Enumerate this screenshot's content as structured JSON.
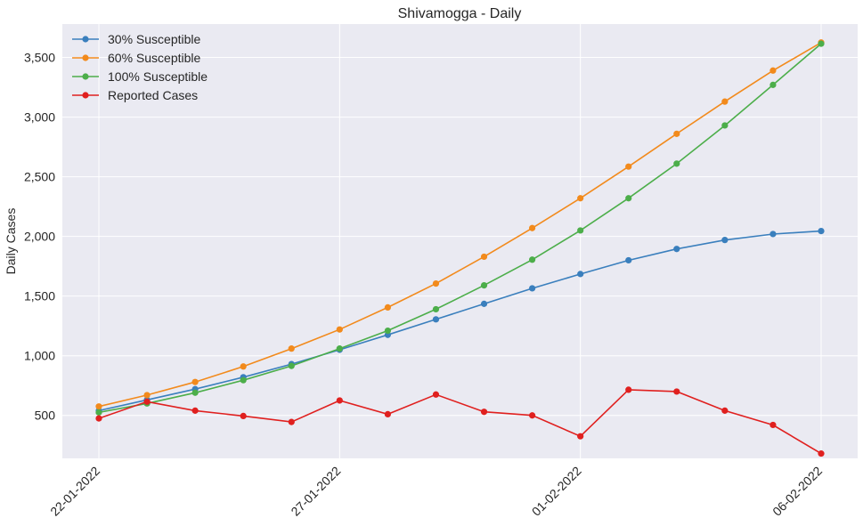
{
  "chart_data": {
    "type": "line",
    "title": "Shivamogga - Daily",
    "xlabel": "",
    "ylabel": "Daily Cases",
    "x": [
      "22-01-2022",
      "23-01-2022",
      "24-01-2022",
      "25-01-2022",
      "26-01-2022",
      "27-01-2022",
      "28-01-2022",
      "29-01-2022",
      "30-01-2022",
      "31-01-2022",
      "01-02-2022",
      "02-02-2022",
      "03-02-2022",
      "04-02-2022",
      "05-02-2022",
      "06-02-2022"
    ],
    "x_ticks": [
      "22-01-2022",
      "27-01-2022",
      "01-02-2022",
      "06-02-2022"
    ],
    "y_ticks": [
      500,
      1000,
      1500,
      2000,
      2500,
      3000,
      3500
    ],
    "y_tick_labels": [
      "500",
      "1,000",
      "1,500",
      "2,000",
      "2,500",
      "3,000",
      "3,500"
    ],
    "ylim": [
      140,
      3780
    ],
    "grid": true,
    "legend_position": "top-left",
    "series": [
      {
        "name": "30% Susceptible",
        "color": "#3a7fbd",
        "values": [
          540,
          630,
          720,
          820,
          930,
          1050,
          1175,
          1305,
          1435,
          1565,
          1685,
          1800,
          1895,
          1970,
          2020,
          2045
        ]
      },
      {
        "name": "60% Susceptible",
        "color": "#f28a1c",
        "values": [
          575,
          670,
          780,
          910,
          1060,
          1220,
          1405,
          1605,
          1830,
          2070,
          2320,
          2585,
          2860,
          3130,
          3390,
          3625
        ]
      },
      {
        "name": "100% Susceptible",
        "color": "#4cae4a",
        "values": [
          525,
          600,
          690,
          795,
          915,
          1060,
          1210,
          1390,
          1590,
          1805,
          2050,
          2320,
          2610,
          2930,
          3270,
          3615
        ]
      },
      {
        "name": "Reported Cases",
        "color": "#e0201f",
        "values": [
          475,
          615,
          540,
          495,
          445,
          625,
          510,
          675,
          530,
          500,
          325,
          715,
          700,
          540,
          420,
          180
        ]
      }
    ]
  }
}
